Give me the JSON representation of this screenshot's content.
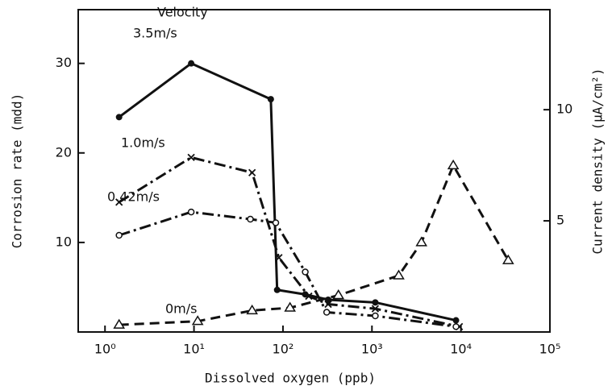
{
  "chart_data": {
    "type": "line",
    "xlabel": "Dissolved oxygen (ppb)",
    "ylabel": "Corrosion rate (mdd)",
    "y2label": "Current density (μA/cm²)",
    "annotation": "Velocity",
    "xscale": "log",
    "xlim": [
      0.5,
      100000
    ],
    "xticks": [
      {
        "value": 1,
        "label": "10⁰"
      },
      {
        "value": 10,
        "label": "10¹"
      },
      {
        "value": 100,
        "label": "10²"
      },
      {
        "value": 1000,
        "label": "10³"
      },
      {
        "value": 10000,
        "label": "10⁴"
      },
      {
        "value": 100000,
        "label": "10⁵"
      }
    ],
    "ylim": [
      0,
      36
    ],
    "yticks": [
      10,
      20,
      30
    ],
    "y2lim": [
      0,
      14.5
    ],
    "y2ticks": [
      5,
      10
    ],
    "series": [
      {
        "name": "3.5m/s",
        "color": "#111",
        "marker": "dot",
        "x": [
          1.44,
          9.3,
          73,
          86,
          178,
          322,
          1090,
          8800
        ],
        "values": [
          24,
          30,
          26,
          4.7,
          4.2,
          3.6,
          3.3,
          1.3
        ]
      },
      {
        "name": "1.0m/s",
        "color": "#111",
        "marker": "cross",
        "x": [
          1.44,
          9.3,
          45,
          90,
          195,
          322,
          1090,
          9600
        ],
        "values": [
          14.5,
          19.5,
          17.8,
          8.3,
          4.0,
          3.1,
          2.6,
          0.6
        ]
      },
      {
        "name": "0.42m/s",
        "color": "#111",
        "marker": "circle",
        "x": [
          1.44,
          9.3,
          43,
          83,
          178,
          310,
          1090,
          8800
        ],
        "values": [
          10.8,
          13.4,
          12.6,
          12.2,
          6.7,
          2.2,
          1.8,
          0.6
        ]
      },
      {
        "name": "0m/s",
        "color": "#111",
        "marker": "triangle",
        "x": [
          1.44,
          11,
          45,
          120,
          420,
          2000,
          3600,
          8200,
          34000
        ],
        "values": [
          0.8,
          1.2,
          2.4,
          2.7,
          4.1,
          6.3,
          10,
          18.6,
          8
        ]
      }
    ]
  }
}
